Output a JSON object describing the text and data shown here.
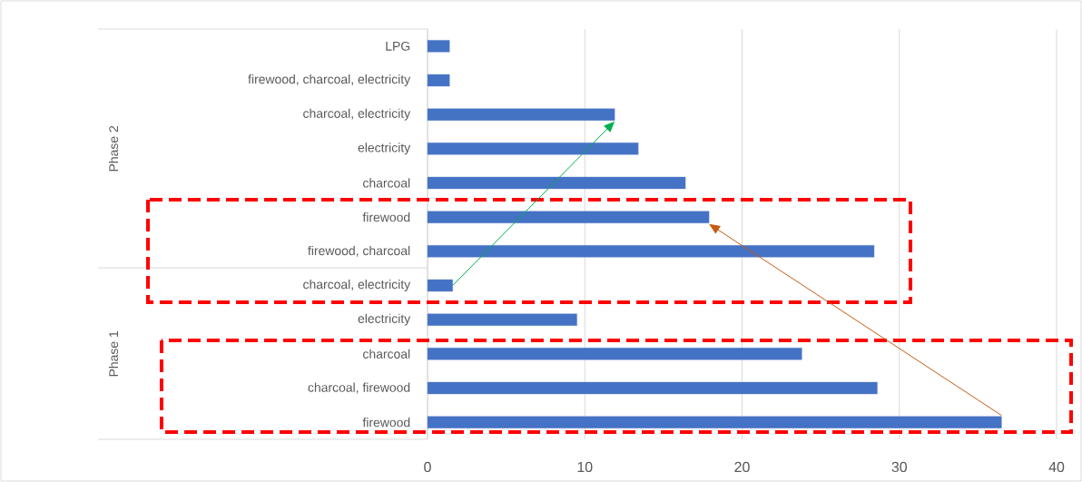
{
  "chart_data": {
    "type": "bar",
    "orientation": "horizontal",
    "categories": [
      "LPG",
      "firewood, charcoal, electricity",
      "charcoal, electricity",
      "electricity",
      "charcoal",
      "firewood",
      "firewood, charcoal",
      "charcoal, electricity",
      "electricity",
      "charcoal",
      "charcoal, firewood",
      "firewood"
    ],
    "values": [
      1.4,
      1.4,
      11.9,
      13.4,
      16.4,
      17.9,
      28.4,
      1.6,
      9.5,
      23.8,
      28.6,
      36.5
    ],
    "color": "#4472c4",
    "xlim": [
      0,
      40
    ],
    "xticks": [
      0,
      10,
      20,
      30,
      40
    ],
    "grid": "x",
    "annotations": [
      "Phase 2",
      "Phase 1"
    ]
  }
}
